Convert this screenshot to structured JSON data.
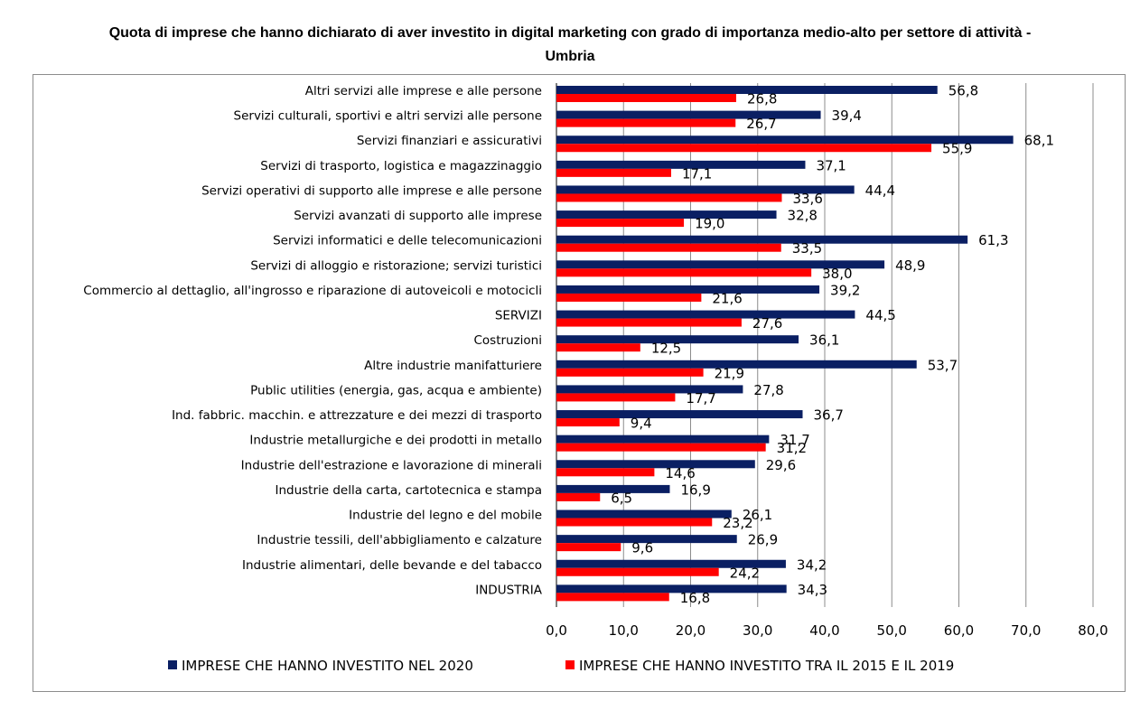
{
  "chart_data": {
    "type": "bar",
    "orientation": "horizontal",
    "title_line1": "Quota di imprese che hanno dichiarato di aver investito in digital marketing con grado di importanza medio-alto per settore di attività -",
    "title_line2": "Umbria",
    "categories": [
      "Altri servizi alle imprese e alle persone",
      "Servizi culturali, sportivi e altri servizi alle persone",
      "Servizi finanziari e assicurativi",
      "Servizi di trasporto, logistica e magazzinaggio",
      "Servizi operativi di supporto alle imprese e alle persone",
      "Servizi avanzati di supporto alle imprese",
      "Servizi informatici e delle telecomunicazioni",
      "Servizi di alloggio e ristorazione; servizi turistici",
      "Commercio al dettaglio, all'ingrosso e riparazione di autoveicoli e motocicli",
      "SERVIZI",
      "Costruzioni",
      "Altre industrie manifatturiere",
      "Public utilities (energia, gas, acqua e ambiente)",
      "Ind. fabbric. macchin. e attrezzature e dei mezzi di trasporto",
      "Industrie metallurgiche e dei prodotti in metallo",
      "Industrie dell'estrazione e lavorazione di minerali",
      "Industrie della carta, cartotecnica e stampa",
      "Industrie del legno e del mobile",
      "Industrie tessili, dell'abbigliamento e calzature",
      "Industrie alimentari, delle bevande e del tabacco",
      "INDUSTRIA"
    ],
    "series": [
      {
        "name": "IMPRESE CHE HANNO INVESTITO  NEL 2020",
        "color": "#0a1f63",
        "values": [
          56.8,
          39.4,
          68.1,
          37.1,
          44.4,
          32.8,
          61.3,
          48.9,
          39.2,
          44.5,
          36.1,
          53.7,
          27.8,
          36.7,
          31.7,
          29.6,
          16.9,
          26.1,
          26.9,
          34.2,
          34.3
        ],
        "labels": [
          "56,8",
          "39,4",
          "68,1",
          "37,1",
          "44,4",
          "32,8",
          "61,3",
          "48,9",
          "39,2",
          "44,5",
          "36,1",
          "53,7",
          "27,8",
          "36,7",
          "31,7",
          "29,6",
          "16,9",
          "26,1",
          "26,9",
          "34,2",
          "34,3"
        ]
      },
      {
        "name": "IMPRESE CHE HANNO INVESTITO  TRA IL 2015 E IL 2019",
        "color": "#ff0000",
        "values": [
          26.8,
          26.7,
          55.9,
          17.1,
          33.6,
          19.0,
          33.5,
          38.0,
          21.6,
          27.6,
          12.5,
          21.9,
          17.7,
          9.4,
          31.2,
          14.6,
          6.5,
          23.2,
          9.6,
          24.2,
          16.8
        ],
        "labels": [
          "26,8",
          "26,7",
          "55,9",
          "17,1",
          "33,6",
          "19,0",
          "33,5",
          "38,0",
          "21,6",
          "27,6",
          "12,5",
          "21,9",
          "17,7",
          "9,4",
          "31,2",
          "14,6",
          "6,5",
          "23,2",
          "9,6",
          "24,2",
          "16,8"
        ]
      }
    ],
    "xlim": [
      0,
      80
    ],
    "xticks": [
      0,
      10,
      20,
      30,
      40,
      50,
      60,
      70,
      80
    ],
    "xtick_labels": [
      "0,0",
      "10,0",
      "20,0",
      "30,0",
      "40,0",
      "50,0",
      "60,0",
      "70,0",
      "80,0"
    ],
    "grid": "vertical",
    "legend_position": "bottom"
  }
}
